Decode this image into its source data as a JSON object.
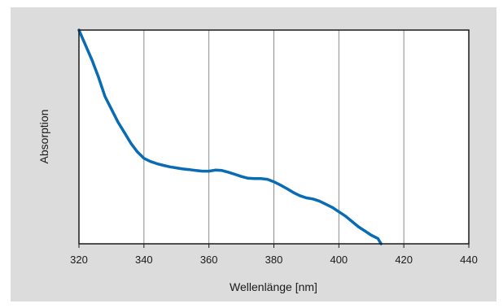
{
  "chart_data": {
    "type": "line",
    "title": "",
    "xlabel": "Wellenlänge [nm]",
    "ylabel": "Absorption",
    "xlim": [
      320,
      440
    ],
    "ylim": [
      0,
      1
    ],
    "xticks": [
      "320",
      "340",
      "360",
      "380",
      "400",
      "420",
      "440"
    ],
    "grid": "vertical",
    "series": [
      {
        "color": "#0a6bb5",
        "x": [
          320,
          322,
          324,
          326,
          328,
          330,
          332,
          334,
          336,
          338,
          340,
          342,
          344,
          346,
          348,
          350,
          352,
          354,
          356,
          358,
          360,
          362,
          364,
          366,
          368,
          370,
          372,
          374,
          376,
          378,
          380,
          382,
          384,
          386,
          388,
          390,
          392,
          394,
          396,
          398,
          400,
          402,
          404,
          406,
          408,
          410,
          412,
          413
        ],
        "y": [
          1.0,
          0.93,
          0.86,
          0.78,
          0.69,
          0.63,
          0.57,
          0.52,
          0.47,
          0.43,
          0.4,
          0.385,
          0.375,
          0.367,
          0.36,
          0.355,
          0.35,
          0.347,
          0.343,
          0.34,
          0.34,
          0.345,
          0.343,
          0.335,
          0.325,
          0.315,
          0.307,
          0.305,
          0.305,
          0.302,
          0.29,
          0.275,
          0.258,
          0.24,
          0.225,
          0.215,
          0.21,
          0.2,
          0.185,
          0.17,
          0.15,
          0.13,
          0.105,
          0.08,
          0.06,
          0.04,
          0.025,
          0.0
        ]
      }
    ]
  }
}
